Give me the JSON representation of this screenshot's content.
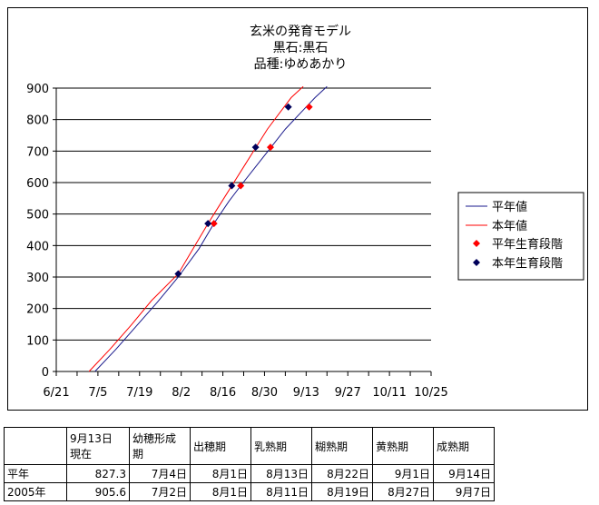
{
  "chart_data": {
    "type": "line",
    "title": [
      "玄米の発育モデル",
      "黒石:黒石",
      "品種:ゆめあかり"
    ],
    "x_tick_labels": [
      "6/21",
      "7/5",
      "7/19",
      "8/2",
      "8/16",
      "8/30",
      "9/13",
      "9/27",
      "10/11",
      "10/25"
    ],
    "y_tick_labels": [
      "0",
      "100",
      "200",
      "300",
      "400",
      "500",
      "600",
      "700",
      "800",
      "900"
    ],
    "ylim": [
      0,
      900
    ],
    "grid": "horizontal",
    "legend_position": "right",
    "legend": [
      "平年値",
      "本年値",
      "平年生育段階",
      "本年生育段階"
    ],
    "series": [
      {
        "name": "平年値",
        "type": "line",
        "color": "#1a1a8c",
        "x": [
          "7/4",
          "7/11",
          "7/18",
          "7/25",
          "8/1",
          "8/8",
          "8/13",
          "8/18",
          "8/22",
          "8/27",
          "9/1",
          "9/6",
          "9/11",
          "9/16",
          "9/20"
        ],
        "y": [
          0,
          70,
          145,
          220,
          300,
          390,
          470,
          540,
          590,
          650,
          710,
          770,
          820,
          870,
          905
        ]
      },
      {
        "name": "本年値",
        "type": "line",
        "color": "#ff0000",
        "x": [
          "7/2",
          "7/9",
          "7/16",
          "7/23",
          "8/1",
          "8/6",
          "8/11",
          "8/15",
          "8/19",
          "8/23",
          "8/27",
          "8/31",
          "9/4",
          "9/8",
          "9/12"
        ],
        "y": [
          0,
          70,
          145,
          225,
          310,
          390,
          470,
          530,
          590,
          650,
          710,
          770,
          820,
          870,
          905
        ]
      },
      {
        "name": "平年生育段階",
        "type": "scatter",
        "color": "#ff0000",
        "marker": "diamond",
        "x": [
          "8/13",
          "8/22",
          "9/1",
          "9/14"
        ],
        "y": [
          470,
          590,
          712,
          840
        ]
      },
      {
        "name": "本年生育段階",
        "type": "scatter",
        "color": "#00005a",
        "marker": "diamond",
        "x": [
          "8/1",
          "8/11",
          "8/19",
          "8/27",
          "9/7"
        ],
        "y": [
          310,
          470,
          590,
          712,
          840
        ]
      }
    ]
  },
  "stage_table": {
    "headers": [
      "",
      "9月13日\n現在",
      "幼穂形成\n期",
      "出穂期",
      "乳熟期",
      "糊熟期",
      "黄熟期",
      "成熟期"
    ],
    "rows": [
      [
        "平年",
        "827.3",
        "7月4日",
        "8月1日",
        "8月13日",
        "8月22日",
        "9月1日",
        "9月14日"
      ],
      [
        "2005年",
        "905.6",
        "7月2日",
        "8月1日",
        "8月11日",
        "8月19日",
        "8月27日",
        "9月7日"
      ]
    ]
  }
}
